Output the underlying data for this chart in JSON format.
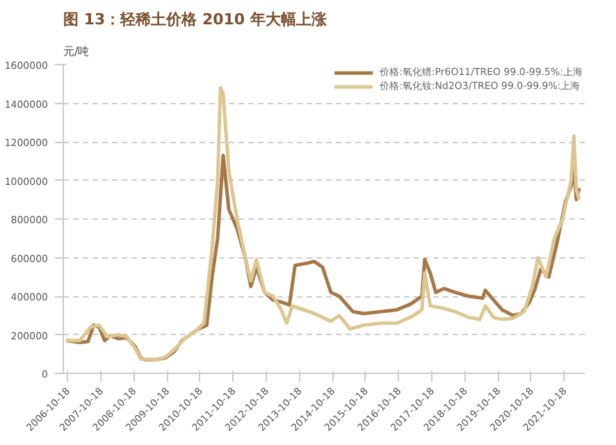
{
  "chart_data": {
    "type": "line",
    "title": "图 13：轻稀土价格 2010 年大幅上涨",
    "ylabel": "元/吨",
    "xlim": [
      "2006-09-01",
      "2022-06-01"
    ],
    "xticks": [
      "2006-10-18",
      "2007-10-18",
      "2008-10-18",
      "2009-10-18",
      "2010-10-18",
      "2011-10-18",
      "2012-10-18",
      "2013-10-18",
      "2014-10-18",
      "2015-10-18",
      "2016-10-18",
      "2017-10-18",
      "2018-10-18",
      "2019-10-18",
      "2020-10-18",
      "2021-10-18"
    ],
    "ylim": [
      0,
      1600000
    ],
    "yticks": [
      0,
      200000,
      400000,
      600000,
      800000,
      1000000,
      1200000,
      1400000,
      1600000
    ],
    "grid": "y",
    "legend": "top",
    "marker": "none",
    "line_style": "solid",
    "series": [
      {
        "name": "价格:氧化镨:Pr6O11/TREO 99.0-99.5%:上海",
        "color": "#a57848",
        "x": [
          "2006-10",
          "2007-03",
          "2007-06",
          "2007-08",
          "2007-10",
          "2007-12",
          "2008-02",
          "2008-05",
          "2008-08",
          "2008-11",
          "2009-01",
          "2009-03",
          "2009-07",
          "2009-10",
          "2010-01",
          "2010-04",
          "2010-07",
          "2010-10",
          "2011-01",
          "2011-03",
          "2011-05",
          "2011-07",
          "2011-09",
          "2011-12",
          "2012-03",
          "2012-05",
          "2012-07",
          "2012-10",
          "2013-01",
          "2013-04",
          "2013-07",
          "2013-09",
          "2014-01",
          "2014-04",
          "2014-07",
          "2014-10",
          "2015-01",
          "2015-06",
          "2015-10",
          "2016-04",
          "2016-10",
          "2017-03",
          "2017-07",
          "2017-08",
          "2017-10",
          "2017-12",
          "2018-03",
          "2018-07",
          "2018-12",
          "2019-05",
          "2019-06",
          "2019-09",
          "2019-12",
          "2020-04",
          "2020-07",
          "2020-10",
          "2020-12",
          "2021-02",
          "2021-05",
          "2021-08",
          "2021-11",
          "2022-01",
          "2022-02",
          "2022-03",
          "2022-04"
        ],
        "values": [
          170000,
          160000,
          165000,
          250000,
          240000,
          170000,
          195000,
          180000,
          185000,
          140000,
          80000,
          70000,
          72000,
          80000,
          110000,
          170000,
          200000,
          230000,
          250000,
          500000,
          700000,
          1130000,
          850000,
          750000,
          600000,
          450000,
          550000,
          420000,
          380000,
          370000,
          355000,
          560000,
          570000,
          580000,
          550000,
          420000,
          400000,
          320000,
          310000,
          320000,
          330000,
          360000,
          400000,
          590000,
          520000,
          420000,
          440000,
          420000,
          400000,
          390000,
          430000,
          380000,
          330000,
          300000,
          310000,
          370000,
          440000,
          540000,
          500000,
          680000,
          890000,
          970000,
          1050000,
          900000,
          960000
        ]
      },
      {
        "name": "价格:氧化钕:Nd2O3/TREO 99.0-99.9%:上海",
        "color": "#dcc792",
        "x": [
          "2006-10",
          "2007-03",
          "2007-07",
          "2007-10",
          "2008-01",
          "2008-05",
          "2008-08",
          "2008-11",
          "2009-01",
          "2009-07",
          "2009-10",
          "2010-01",
          "2010-05",
          "2010-09",
          "2010-12",
          "2011-03",
          "2011-05",
          "2011-06",
          "2011-07",
          "2011-09",
          "2011-12",
          "2012-03",
          "2012-05",
          "2012-07",
          "2012-10",
          "2013-01",
          "2013-04",
          "2013-06",
          "2013-08",
          "2013-12",
          "2014-04",
          "2014-10",
          "2015-01",
          "2015-05",
          "2015-10",
          "2016-04",
          "2016-10",
          "2017-04",
          "2017-07",
          "2017-08",
          "2017-10",
          "2018-02",
          "2018-07",
          "2018-12",
          "2019-04",
          "2019-06",
          "2019-09",
          "2019-12",
          "2020-04",
          "2020-08",
          "2020-11",
          "2021-01",
          "2021-04",
          "2021-07",
          "2021-10",
          "2022-01",
          "2022-02",
          "2022-03",
          "2022-04"
        ],
        "values": [
          170000,
          170000,
          240000,
          250000,
          190000,
          200000,
          190000,
          130000,
          75000,
          70000,
          85000,
          120000,
          180000,
          220000,
          260000,
          650000,
          1000000,
          1480000,
          1450000,
          1050000,
          800000,
          600000,
          480000,
          590000,
          420000,
          400000,
          330000,
          260000,
          350000,
          330000,
          310000,
          270000,
          300000,
          230000,
          250000,
          260000,
          260000,
          300000,
          330000,
          520000,
          350000,
          340000,
          320000,
          290000,
          280000,
          350000,
          290000,
          280000,
          285000,
          320000,
          450000,
          600000,
          500000,
          700000,
          800000,
          1000000,
          1230000,
          950000,
          900000
        ]
      }
    ]
  }
}
